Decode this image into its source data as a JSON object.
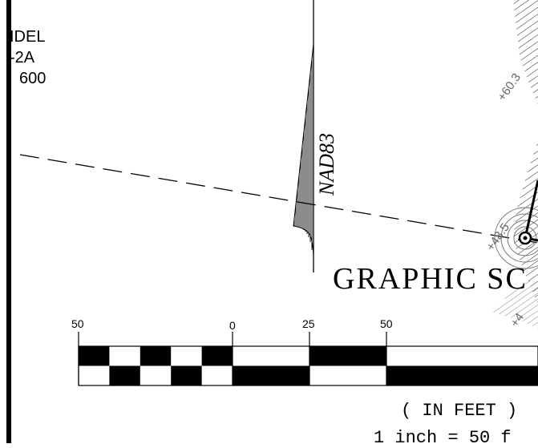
{
  "info_block": {
    "line1": "IDEL",
    "line2": "-2A",
    "line3": "600"
  },
  "north_arrow": {
    "label": "NAD83"
  },
  "scale": {
    "title": "GRAPHIC SC",
    "ticks": [
      "50",
      "0",
      "25",
      "50"
    ],
    "units": "( IN FEET )",
    "ratio": "1 inch = 50 f"
  },
  "elevations": [
    "+60.3",
    "+48.5",
    "+4"
  ]
}
